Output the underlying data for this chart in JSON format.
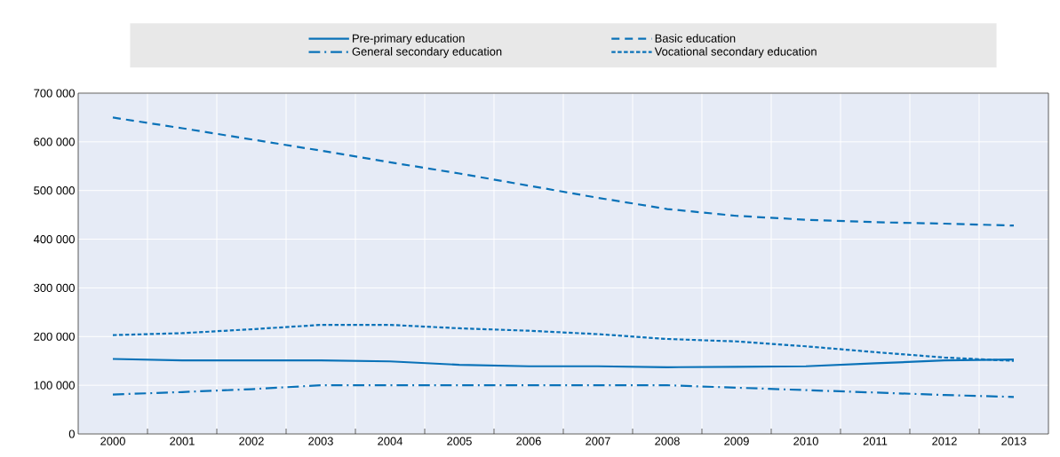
{
  "chart_data": {
    "type": "line",
    "categories": [
      "2000",
      "2001",
      "2002",
      "2003",
      "2004",
      "2005",
      "2006",
      "2007",
      "2008",
      "2009",
      "2010",
      "2011",
      "2012",
      "2013"
    ],
    "series": [
      {
        "name": "Pre-primary education",
        "color": "#0a72b8",
        "line_style": "solid",
        "values": [
          154000,
          151000,
          151000,
          151000,
          149000,
          142000,
          139000,
          139000,
          137000,
          138000,
          139000,
          145000,
          151000,
          153000
        ]
      },
      {
        "name": "Basic education",
        "color": "#0a72b8",
        "line_style": "dashed",
        "values": [
          650000,
          628000,
          605000,
          582000,
          558000,
          535000,
          510000,
          485000,
          462000,
          448000,
          440000,
          435000,
          432000,
          428000
        ]
      },
      {
        "name": "General secondary education",
        "color": "#0a72b8",
        "line_style": "dashdot",
        "values": [
          81000,
          86000,
          92000,
          100000,
          100000,
          100000,
          100000,
          100000,
          100000,
          95000,
          90000,
          85000,
          80000,
          76000
        ]
      },
      {
        "name": "Vocational secondary education",
        "color": "#0a72b8",
        "line_style": "dotted",
        "values": [
          203000,
          207000,
          215000,
          224000,
          224000,
          217000,
          212000,
          205000,
          195000,
          190000,
          180000,
          168000,
          157000,
          150000
        ]
      }
    ],
    "ylim": [
      0,
      700000
    ],
    "yticks": [
      0,
      {
        "value": 100000,
        "label": "100 000"
      },
      {
        "value": 200000,
        "label": "200 000"
      },
      {
        "value": 300000,
        "label": "300 000"
      },
      {
        "value": 400000,
        "label": "400 000"
      },
      {
        "value": 500000,
        "label": "500 000"
      },
      {
        "value": 600000,
        "label": "600 000"
      },
      {
        "value": 700000,
        "label": "700 000"
      }
    ],
    "grid": true,
    "legend": "top",
    "marker": "none"
  }
}
